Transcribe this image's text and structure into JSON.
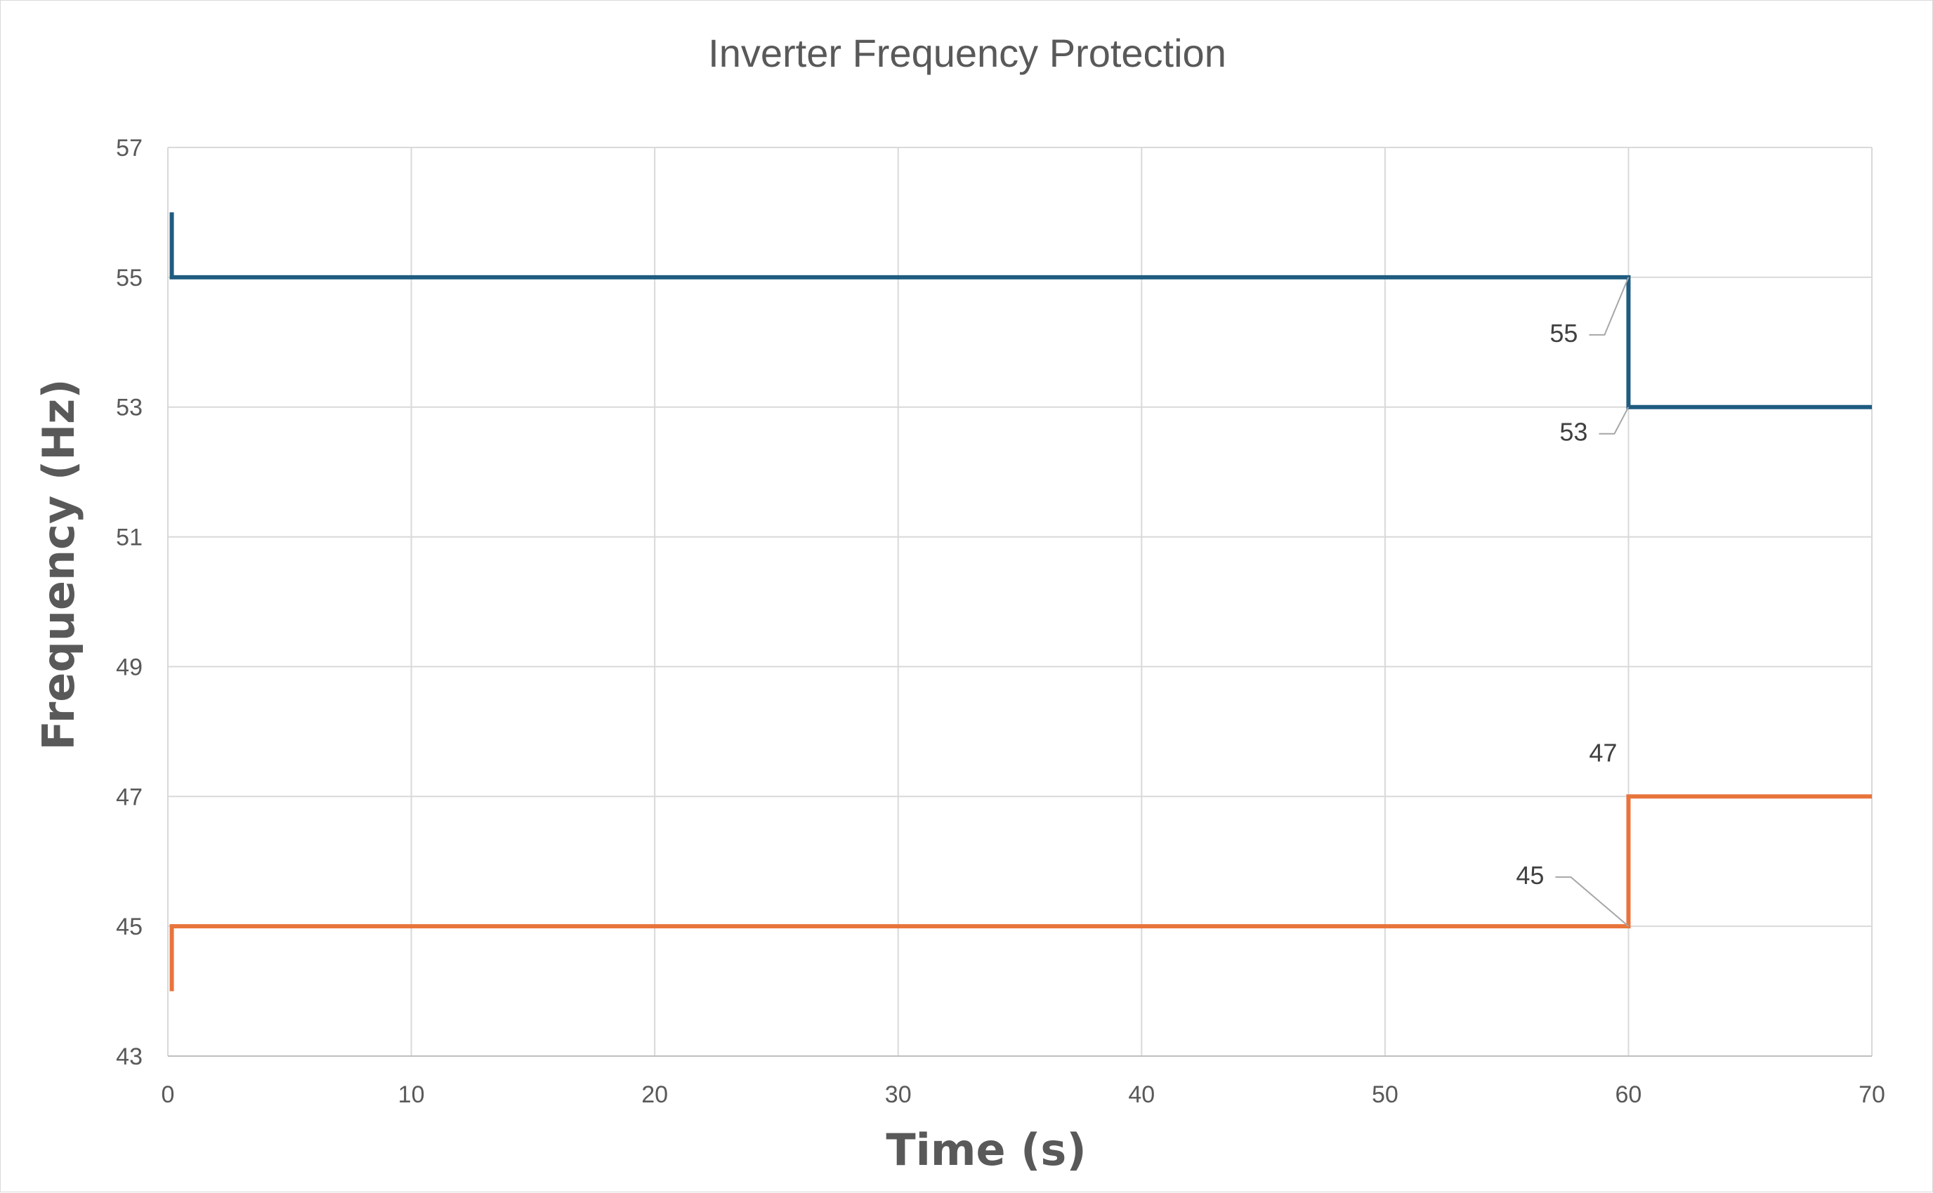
{
  "chart_data": {
    "type": "line",
    "title": "Inverter Frequency Protection",
    "xlabel": "Time (s)",
    "ylabel": "Frequency (Hz)",
    "xlim": [
      0,
      70
    ],
    "ylim": [
      43,
      57
    ],
    "xticks": [
      0,
      10,
      20,
      30,
      40,
      50,
      60,
      70
    ],
    "yticks": [
      43,
      45,
      47,
      49,
      51,
      53,
      55,
      57
    ],
    "grid": true,
    "legend": "none",
    "series": [
      {
        "color": "#1f5c80",
        "points": [
          [
            0.16,
            56
          ],
          [
            0.16,
            55
          ],
          [
            60,
            55
          ],
          [
            60,
            53
          ],
          [
            70,
            53
          ]
        ]
      },
      {
        "color": "#e8743b",
        "points": [
          [
            0.16,
            44
          ],
          [
            0.16,
            45
          ],
          [
            60,
            45
          ],
          [
            60,
            47
          ],
          [
            70,
            47
          ]
        ]
      }
    ],
    "annotations": [
      {
        "text": "55",
        "x": 60,
        "y": 55
      },
      {
        "text": "53",
        "x": 60,
        "y": 53
      },
      {
        "text": "47",
        "x": 60,
        "y": 47
      },
      {
        "text": "45",
        "x": 60,
        "y": 45
      }
    ]
  }
}
